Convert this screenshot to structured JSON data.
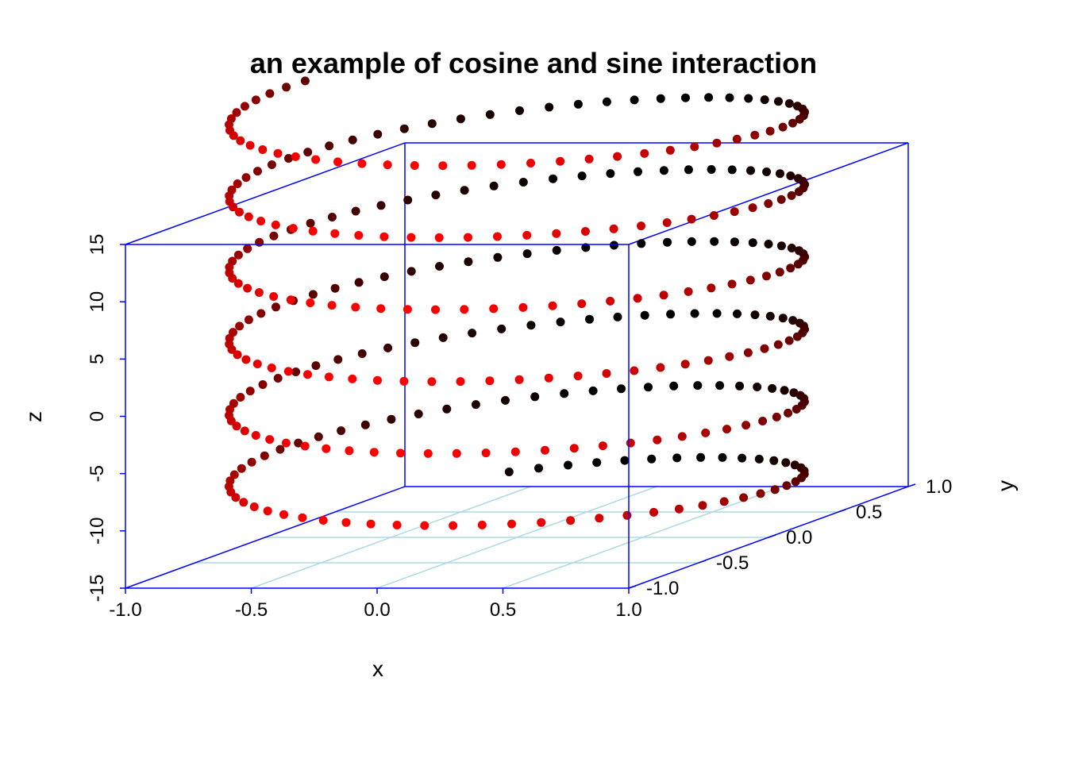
{
  "chart_data": {
    "type": "scatter3d",
    "title": "an example of cosine and sine interaction",
    "xlabel": "x",
    "ylabel": "y",
    "zlabel": "z",
    "xlim": [
      -1.0,
      1.0
    ],
    "ylim": [
      -1.0,
      1.0
    ],
    "zlim": [
      -15,
      15
    ],
    "x_ticks": [
      "-1.0",
      "-0.5",
      "0.0",
      "0.5",
      "1.0"
    ],
    "y_ticks": [
      "-1.0",
      "-0.5",
      "0.0",
      "0.5",
      "1.0"
    ],
    "z_ticks": [
      "-15",
      "-10",
      "-5",
      "0",
      "5",
      "10",
      "15"
    ],
    "series": [
      {
        "x": "sin(t)",
        "y": "cos(t)",
        "z": "t",
        "t_range": [
          -13.1,
          23.8
        ],
        "n_points": 360
      }
    ],
    "colors": {
      "box": "#0000ff",
      "grid": "#add8e6",
      "point_low": "#000000",
      "point_high": "#ff0000"
    },
    "grid": true
  }
}
